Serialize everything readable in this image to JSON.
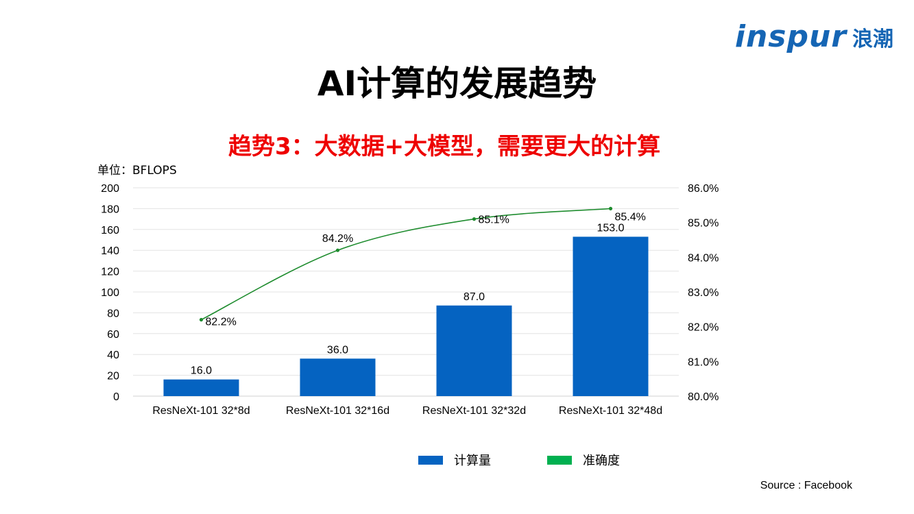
{
  "logo": {
    "text": "inspur",
    "cn": "浪潮"
  },
  "title": "AI计算的发展趋势",
  "subtitle": "趋势3：大数据+大模型，需要更大的计算",
  "unit_label": "单位：BFLOPS",
  "source": "Source : Facebook",
  "colors": {
    "bar": "#0563c1",
    "line": "#1e8c2e",
    "legend_line": "#00b050",
    "subtitle": "#ee0000",
    "logo": "#1565b4"
  },
  "chart_data": {
    "type": "bar",
    "categories": [
      "ResNeXt-101 32*8d",
      "ResNeXt-101 32*16d",
      "ResNeXt-101 32*32d",
      "ResNeXt-101 32*48d"
    ],
    "series": [
      {
        "name": "计算量",
        "type": "bar",
        "axis": "left",
        "values": [
          16.0,
          36.0,
          87.0,
          153.0
        ],
        "labels": [
          "16.0",
          "36.0",
          "87.0",
          "153.0"
        ]
      },
      {
        "name": "准确度",
        "type": "line",
        "axis": "right",
        "values": [
          82.2,
          84.2,
          85.1,
          85.4
        ],
        "labels": [
          "82.2%",
          "84.2%",
          "85.1%",
          "85.4%"
        ]
      }
    ],
    "ylim": [
      0,
      200
    ],
    "yticks": [
      "0",
      "20",
      "40",
      "60",
      "80",
      "100",
      "120",
      "140",
      "160",
      "180",
      "200"
    ],
    "y2lim": [
      80.0,
      86.0
    ],
    "y2ticks": [
      "80.0%",
      "81.0%",
      "82.0%",
      "83.0%",
      "84.0%",
      "85.0%",
      "86.0%"
    ],
    "grid": true,
    "legend_position": "bottom"
  }
}
